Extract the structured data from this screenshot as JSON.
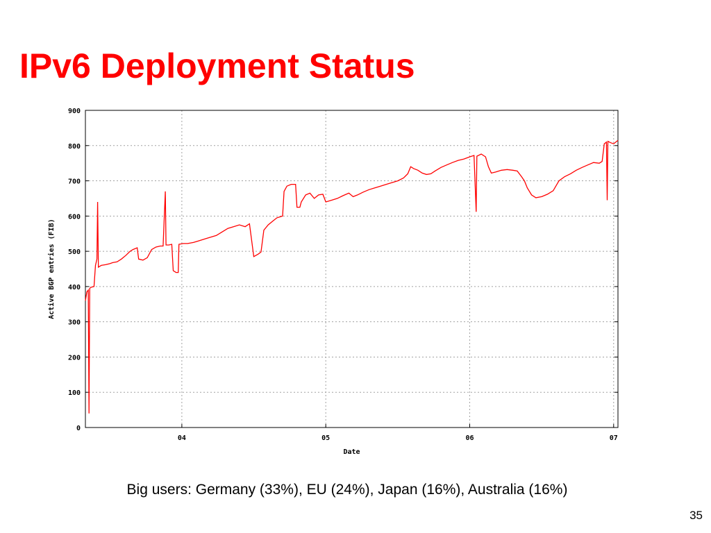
{
  "slide": {
    "title": "IPv6 Deployment Status",
    "caption": "Big users: Germany (33%), EU (24%), Japan (16%), Australia (16%)",
    "page_number": "35"
  },
  "colors": {
    "title": "#ff0000",
    "series": "#ff0000",
    "grid": "#a0a0a0",
    "axis": "#000000"
  },
  "chart_data": {
    "type": "line",
    "title": "",
    "xlabel": "Date",
    "ylabel": "Active BGP entries (FIB)",
    "xlim": [
      2003.33,
      2007.03
    ],
    "ylim": [
      0,
      900
    ],
    "grid": true,
    "x_ticks": [
      {
        "value": 2004,
        "label": "04"
      },
      {
        "value": 2005,
        "label": "05"
      },
      {
        "value": 2006,
        "label": "06"
      },
      {
        "value": 2007,
        "label": "07"
      }
    ],
    "y_ticks": [
      0,
      100,
      200,
      300,
      400,
      500,
      600,
      700,
      800,
      900
    ],
    "series": [
      {
        "points": [
          [
            2003.33,
            360
          ],
          [
            2003.34,
            385
          ],
          [
            2003.35,
            390
          ],
          [
            2003.355,
            40
          ],
          [
            2003.36,
            395
          ],
          [
            2003.37,
            398
          ],
          [
            2003.39,
            400
          ],
          [
            2003.4,
            460
          ],
          [
            2003.41,
            478
          ],
          [
            2003.415,
            640
          ],
          [
            2003.42,
            455
          ],
          [
            2003.44,
            460
          ],
          [
            2003.47,
            462
          ],
          [
            2003.5,
            465
          ],
          [
            2003.52,
            468
          ],
          [
            2003.55,
            470
          ],
          [
            2003.58,
            478
          ],
          [
            2003.61,
            488
          ],
          [
            2003.64,
            500
          ],
          [
            2003.66,
            505
          ],
          [
            2003.69,
            510
          ],
          [
            2003.7,
            478
          ],
          [
            2003.73,
            475
          ],
          [
            2003.76,
            482
          ],
          [
            2003.79,
            505
          ],
          [
            2003.82,
            512
          ],
          [
            2003.85,
            515
          ],
          [
            2003.87,
            515
          ],
          [
            2003.885,
            670
          ],
          [
            2003.89,
            518
          ],
          [
            2003.91,
            518
          ],
          [
            2003.93,
            520
          ],
          [
            2003.94,
            445
          ],
          [
            2003.96,
            440
          ],
          [
            2003.975,
            440
          ],
          [
            2003.98,
            520
          ],
          [
            2004.01,
            522
          ],
          [
            2004.04,
            522
          ],
          [
            2004.08,
            525
          ],
          [
            2004.12,
            530
          ],
          [
            2004.16,
            535
          ],
          [
            2004.2,
            540
          ],
          [
            2004.24,
            545
          ],
          [
            2004.28,
            555
          ],
          [
            2004.32,
            565
          ],
          [
            2004.36,
            570
          ],
          [
            2004.4,
            575
          ],
          [
            2004.44,
            570
          ],
          [
            2004.47,
            578
          ],
          [
            2004.5,
            485
          ],
          [
            2004.53,
            492
          ],
          [
            2004.55,
            498
          ],
          [
            2004.57,
            560
          ],
          [
            2004.6,
            575
          ],
          [
            2004.63,
            585
          ],
          [
            2004.66,
            595
          ],
          [
            2004.7,
            600
          ],
          [
            2004.71,
            670
          ],
          [
            2004.73,
            685
          ],
          [
            2004.76,
            690
          ],
          [
            2004.79,
            690
          ],
          [
            2004.8,
            625
          ],
          [
            2004.82,
            625
          ],
          [
            2004.83,
            640
          ],
          [
            2004.86,
            660
          ],
          [
            2004.89,
            665
          ],
          [
            2004.92,
            650
          ],
          [
            2004.95,
            660
          ],
          [
            2004.98,
            662
          ],
          [
            2005.0,
            640
          ],
          [
            2005.04,
            645
          ],
          [
            2005.08,
            650
          ],
          [
            2005.12,
            658
          ],
          [
            2005.16,
            665
          ],
          [
            2005.19,
            655
          ],
          [
            2005.22,
            660
          ],
          [
            2005.26,
            668
          ],
          [
            2005.3,
            675
          ],
          [
            2005.34,
            680
          ],
          [
            2005.38,
            685
          ],
          [
            2005.42,
            690
          ],
          [
            2005.46,
            695
          ],
          [
            2005.5,
            700
          ],
          [
            2005.54,
            708
          ],
          [
            2005.57,
            720
          ],
          [
            2005.59,
            740
          ],
          [
            2005.61,
            735
          ],
          [
            2005.64,
            730
          ],
          [
            2005.67,
            722
          ],
          [
            2005.7,
            718
          ],
          [
            2005.73,
            720
          ],
          [
            2005.76,
            728
          ],
          [
            2005.8,
            738
          ],
          [
            2005.84,
            745
          ],
          [
            2005.88,
            752
          ],
          [
            2005.92,
            758
          ],
          [
            2005.96,
            762
          ],
          [
            2006.0,
            768
          ],
          [
            2006.03,
            772
          ],
          [
            2006.045,
            612
          ],
          [
            2006.05,
            770
          ],
          [
            2006.08,
            776
          ],
          [
            2006.11,
            768
          ],
          [
            2006.13,
            740
          ],
          [
            2006.15,
            722
          ],
          [
            2006.18,
            725
          ],
          [
            2006.22,
            730
          ],
          [
            2006.26,
            732
          ],
          [
            2006.3,
            730
          ],
          [
            2006.33,
            728
          ],
          [
            2006.36,
            712
          ],
          [
            2006.38,
            700
          ],
          [
            2006.4,
            680
          ],
          [
            2006.43,
            660
          ],
          [
            2006.46,
            652
          ],
          [
            2006.5,
            655
          ],
          [
            2006.54,
            662
          ],
          [
            2006.58,
            672
          ],
          [
            2006.62,
            700
          ],
          [
            2006.66,
            712
          ],
          [
            2006.7,
            720
          ],
          [
            2006.74,
            730
          ],
          [
            2006.78,
            738
          ],
          [
            2006.82,
            745
          ],
          [
            2006.86,
            752
          ],
          [
            2006.9,
            750
          ],
          [
            2006.92,
            755
          ],
          [
            2006.935,
            805
          ],
          [
            2006.95,
            810
          ],
          [
            2006.955,
            645
          ],
          [
            2006.96,
            812
          ],
          [
            2006.98,
            808
          ],
          [
            2007.0,
            805
          ],
          [
            2007.03,
            815
          ]
        ]
      }
    ]
  }
}
